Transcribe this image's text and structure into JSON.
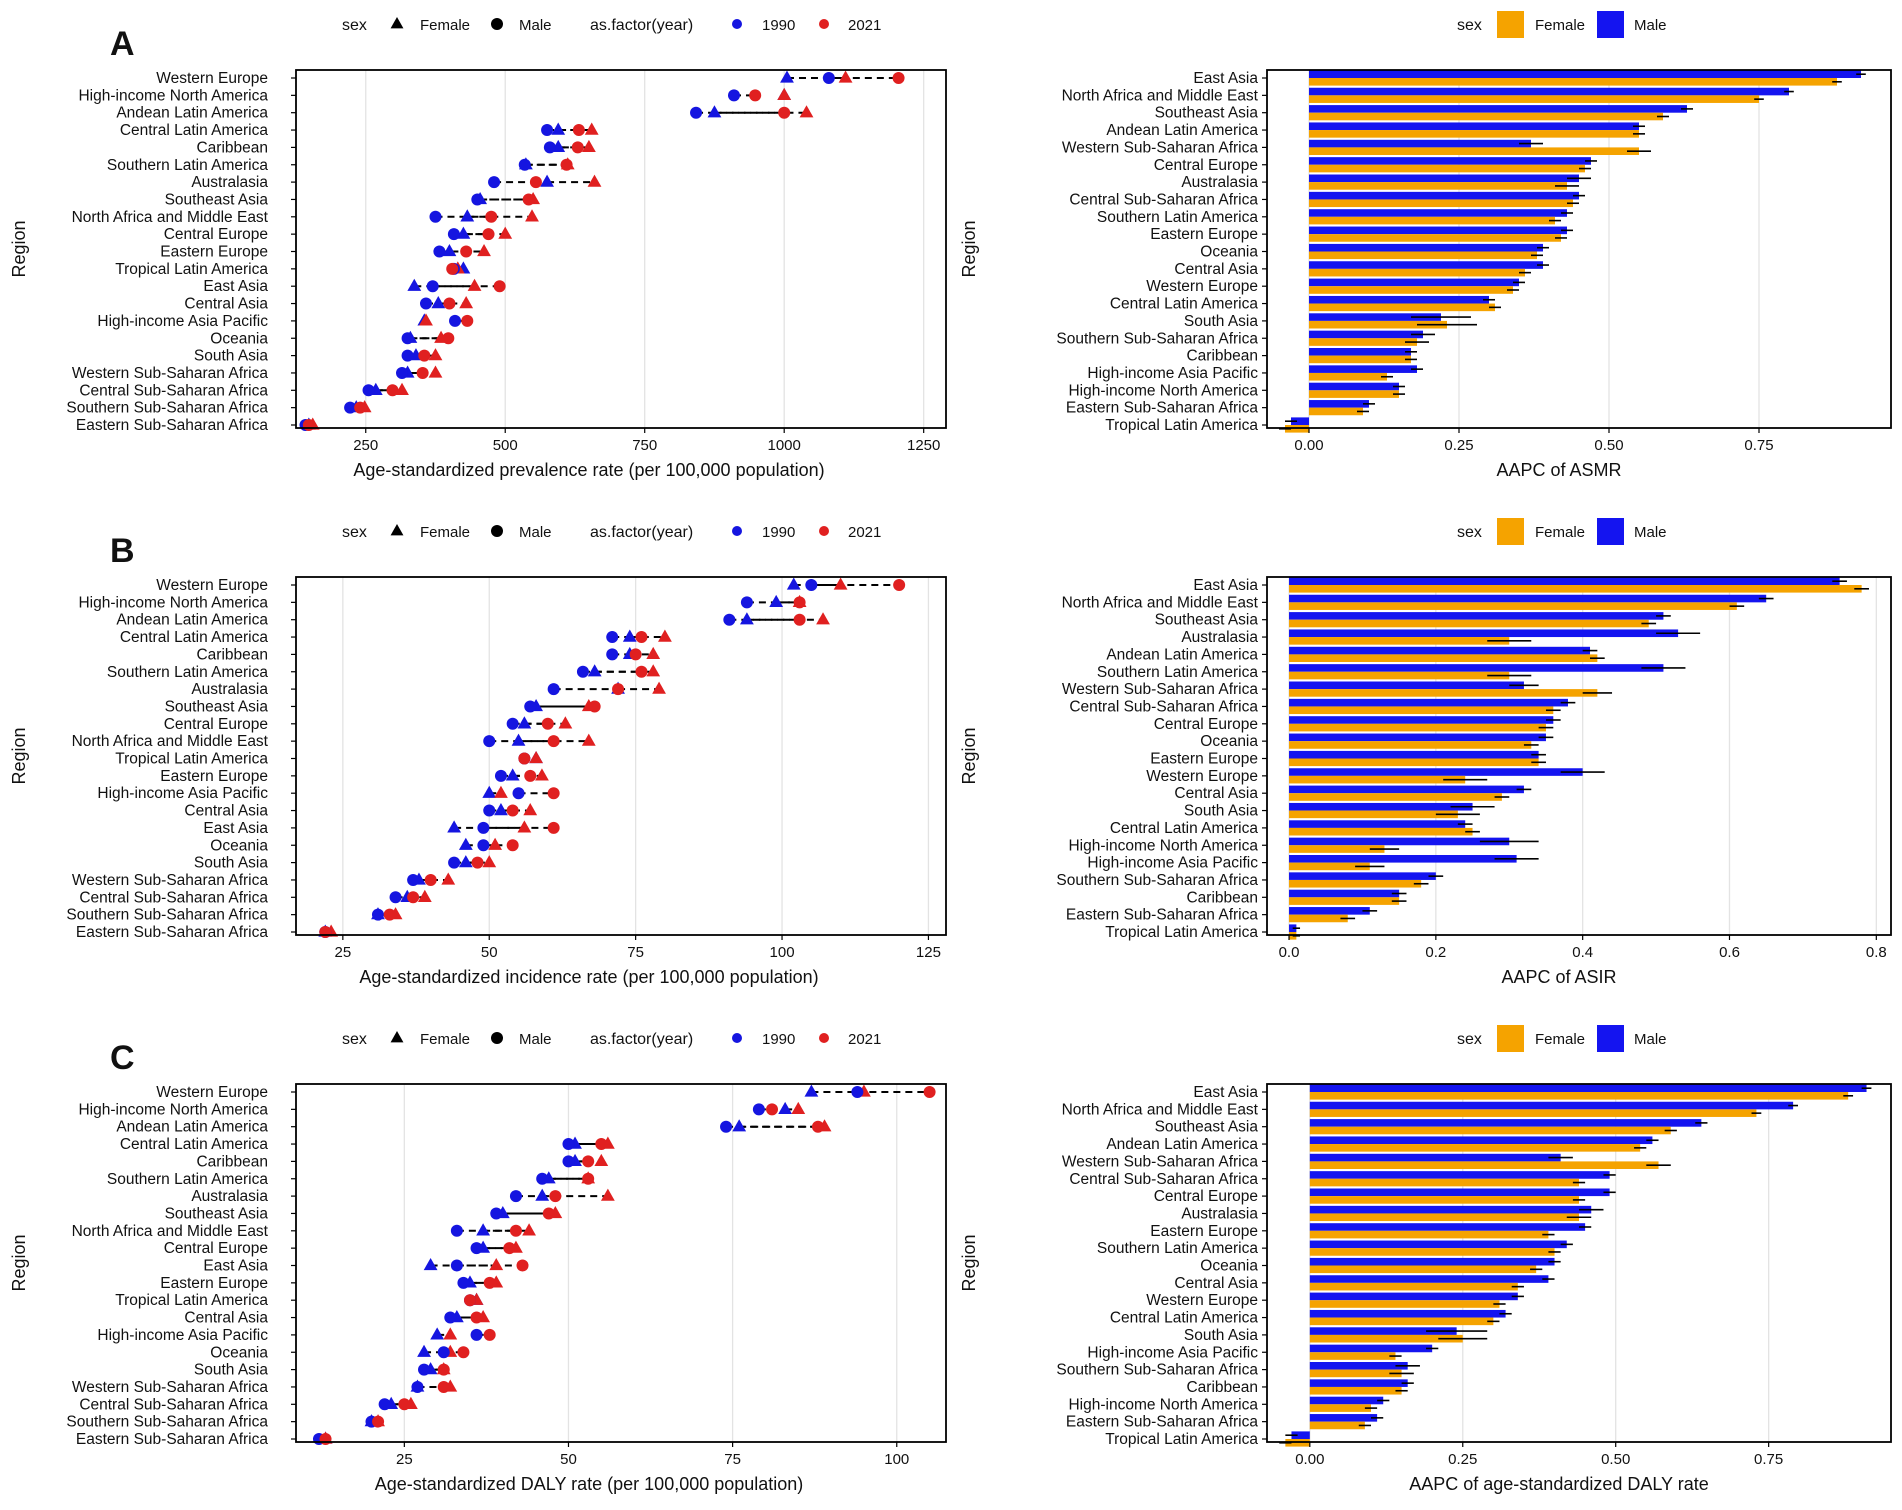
{
  "colors": {
    "y1990": "#1515e0",
    "y2021": "#e02020",
    "female": "#f5a300",
    "male": "#1414f0"
  },
  "chart_data": [
    {
      "id": "A-prevalence",
      "panel_letter": "A",
      "type": "scatter",
      "xlabel": "Age-standardized prevalence rate (per 100,000 population)",
      "ylabel": "Region",
      "xlim": [
        125,
        1290
      ],
      "xticks": [
        250,
        500,
        750,
        1000,
        1250
      ],
      "xtick_labels": [
        "250",
        "500",
        "750",
        "1000",
        "1250"
      ],
      "legend": {
        "sex_title": "sex",
        "female": "Female",
        "male": "Male",
        "year_title": "as.factor(year)",
        "y1": "1990",
        "y2": "2021"
      },
      "regions": [
        "Western Europe",
        "High-income North America",
        "Andean Latin America",
        "Central Latin America",
        "Caribbean",
        "Southern Latin America",
        "Australasia",
        "Southeast Asia",
        "North Africa and Middle East",
        "Central Europe",
        "Eastern Europe",
        "Tropical Latin America",
        "East Asia",
        "Central Asia",
        "High-income Asia Pacific",
        "Oceania",
        "South Asia",
        "Western Sub-Saharan Africa",
        "Central Sub-Saharan Africa",
        "Southern Sub-Saharan Africa",
        "Eastern Sub-Saharan Africa"
      ],
      "female_1990": [
        1005,
        1000,
        875,
        595,
        595,
        537,
        575,
        455,
        432,
        425,
        400,
        425,
        337,
        380,
        355,
        330,
        340,
        325,
        268,
        233,
        148
      ],
      "female_2021": [
        1110,
        1000,
        1040,
        655,
        650,
        612,
        660,
        550,
        548,
        500,
        462,
        415,
        445,
        430,
        358,
        385,
        375,
        375,
        315,
        248,
        155
      ],
      "male_1990": [
        1080,
        910,
        842,
        575,
        580,
        535,
        480,
        450,
        375,
        408,
        382,
        408,
        370,
        358,
        410,
        325,
        325,
        315,
        255,
        222,
        142
      ],
      "male_2021": [
        1205,
        948,
        1000,
        632,
        630,
        610,
        555,
        542,
        475,
        470,
        430,
        405,
        490,
        400,
        432,
        398,
        355,
        352,
        298,
        240,
        148
      ]
    },
    {
      "id": "A-asmr",
      "type": "bar",
      "xlabel": "AAPC of ASMR",
      "ylabel": "Region",
      "xlim": [
        -0.07,
        0.97
      ],
      "xticks": [
        0,
        0.25,
        0.5,
        0.75
      ],
      "xtick_labels": [
        "0.00",
        "0.25",
        "0.50",
        "0.75"
      ],
      "legend": {
        "sex_title": "sex",
        "female": "Female",
        "male": "Male"
      },
      "regions": [
        "East Asia",
        "North Africa and Middle East",
        "Southeast Asia",
        "Andean Latin America",
        "Western Sub-Saharan Africa",
        "Central Europe",
        "Australasia",
        "Central Sub-Saharan Africa",
        "Southern Latin America",
        "Eastern Europe",
        "Oceania",
        "Central Asia",
        "Western Europe",
        "Central Latin America",
        "South Asia",
        "Southern Sub-Saharan Africa",
        "Caribbean",
        "High-income Asia Pacific",
        "High-income North America",
        "Eastern Sub-Saharan Africa",
        "Tropical Latin America"
      ],
      "female": [
        0.88,
        0.75,
        0.59,
        0.55,
        0.55,
        0.46,
        0.43,
        0.44,
        0.41,
        0.42,
        0.38,
        0.36,
        0.34,
        0.31,
        0.23,
        0.18,
        0.17,
        0.13,
        0.15,
        0.09,
        -0.04
      ],
      "male": [
        0.92,
        0.8,
        0.63,
        0.55,
        0.37,
        0.47,
        0.45,
        0.45,
        0.43,
        0.43,
        0.39,
        0.39,
        0.35,
        0.3,
        0.22,
        0.19,
        0.17,
        0.18,
        0.15,
        0.1,
        -0.03
      ],
      "female_err": [
        0.008,
        0.008,
        0.01,
        0.01,
        0.02,
        0.01,
        0.02,
        0.01,
        0.01,
        0.01,
        0.01,
        0.01,
        0.01,
        0.01,
        0.05,
        0.02,
        0.01,
        0.01,
        0.01,
        0.01,
        0.01
      ],
      "male_err": [
        0.008,
        0.008,
        0.01,
        0.01,
        0.02,
        0.01,
        0.02,
        0.01,
        0.01,
        0.01,
        0.01,
        0.01,
        0.01,
        0.01,
        0.05,
        0.02,
        0.01,
        0.01,
        0.01,
        0.01,
        0.01
      ]
    },
    {
      "id": "B-incidence",
      "panel_letter": "B",
      "type": "scatter",
      "xlabel": "Age-standardized incidence rate (per 100,000 population)",
      "ylabel": "Region",
      "xlim": [
        17,
        128
      ],
      "xticks": [
        25,
        50,
        75,
        100,
        125
      ],
      "xtick_labels": [
        "25",
        "50",
        "75",
        "100",
        "125"
      ],
      "legend": {
        "sex_title": "sex",
        "female": "Female",
        "male": "Male",
        "year_title": "as.factor(year)",
        "y1": "1990",
        "y2": "2021"
      },
      "regions": [
        "Western Europe",
        "High-income North America",
        "Andean Latin America",
        "Central Latin America",
        "Caribbean",
        "Southern Latin America",
        "Australasia",
        "Southeast Asia",
        "Central Europe",
        "North Africa and Middle East",
        "Tropical Latin America",
        "Eastern Europe",
        "High-income Asia Pacific",
        "Central Asia",
        "East Asia",
        "Oceania",
        "South Asia",
        "Western Sub-Saharan Africa",
        "Central Sub-Saharan Africa",
        "Southern Sub-Saharan Africa",
        "Eastern Sub-Saharan Africa"
      ],
      "female_1990": [
        102,
        99,
        94,
        74,
        74,
        68,
        72,
        58,
        56,
        55,
        58,
        54,
        50,
        52,
        44,
        46,
        46,
        38,
        36,
        31,
        22
      ],
      "female_2021": [
        110,
        103,
        107,
        80,
        78,
        78,
        79,
        67,
        63,
        67,
        58,
        59,
        52,
        57,
        56,
        51,
        50,
        43,
        39,
        34,
        23
      ],
      "male_1990": [
        105,
        94,
        91,
        71,
        71,
        66,
        61,
        57,
        54,
        50,
        56,
        52,
        55,
        50,
        49,
        49,
        44,
        37,
        34,
        31,
        22
      ],
      "male_2021": [
        120,
        103,
        103,
        76,
        75,
        76,
        72,
        68,
        60,
        61,
        56,
        57,
        61,
        54,
        61,
        54,
        48,
        40,
        37,
        33,
        22
      ]
    },
    {
      "id": "B-asir",
      "type": "bar",
      "xlabel": "AAPC of ASIR",
      "ylabel": "Region",
      "xlim": [
        -0.03,
        0.82
      ],
      "xticks": [
        0,
        0.2,
        0.4,
        0.6,
        0.8
      ],
      "xtick_labels": [
        "0.0",
        "0.2",
        "0.4",
        "0.6",
        "0.8"
      ],
      "legend": {
        "sex_title": "sex",
        "female": "Female",
        "male": "Male"
      },
      "regions": [
        "East Asia",
        "North Africa and Middle East",
        "Southeast Asia",
        "Australasia",
        "Andean Latin America",
        "Southern Latin America",
        "Western Sub-Saharan Africa",
        "Central Sub-Saharan Africa",
        "Central Europe",
        "Oceania",
        "Eastern Europe",
        "Western Europe",
        "Central Asia",
        "South Asia",
        "Central Latin America",
        "High-income North America",
        "High-income Asia Pacific",
        "Southern Sub-Saharan Africa",
        "Caribbean",
        "Eastern Sub-Saharan Africa",
        "Tropical Latin America"
      ],
      "female": [
        0.78,
        0.61,
        0.49,
        0.3,
        0.42,
        0.3,
        0.42,
        0.36,
        0.35,
        0.33,
        0.34,
        0.24,
        0.29,
        0.23,
        0.25,
        0.13,
        0.11,
        0.18,
        0.15,
        0.08,
        0.01
      ],
      "male": [
        0.75,
        0.65,
        0.51,
        0.53,
        0.41,
        0.51,
        0.32,
        0.38,
        0.36,
        0.35,
        0.34,
        0.4,
        0.32,
        0.25,
        0.24,
        0.3,
        0.31,
        0.2,
        0.15,
        0.11,
        0.01
      ],
      "female_err": [
        0.01,
        0.01,
        0.01,
        0.03,
        0.01,
        0.03,
        0.02,
        0.01,
        0.01,
        0.01,
        0.01,
        0.03,
        0.01,
        0.03,
        0.01,
        0.02,
        0.02,
        0.01,
        0.01,
        0.01,
        0.005
      ],
      "male_err": [
        0.01,
        0.01,
        0.01,
        0.03,
        0.01,
        0.03,
        0.02,
        0.01,
        0.01,
        0.01,
        0.01,
        0.03,
        0.01,
        0.03,
        0.01,
        0.04,
        0.03,
        0.01,
        0.01,
        0.01,
        0.005
      ]
    },
    {
      "id": "C-daly",
      "panel_letter": "C",
      "type": "scatter",
      "xlabel": "Age-standardized DALY rate (per 100,000 population)",
      "ylabel": "Region",
      "xlim": [
        8.5,
        107.5
      ],
      "xticks": [
        25,
        50,
        75,
        100
      ],
      "xtick_labels": [
        "25",
        "50",
        "75",
        "100"
      ],
      "legend": {
        "sex_title": "sex",
        "female": "Female",
        "male": "Male",
        "year_title": "as.factor(year)",
        "y1": "1990",
        "y2": "2021"
      },
      "regions": [
        "Western Europe",
        "High-income North America",
        "Andean Latin America",
        "Central Latin America",
        "Caribbean",
        "Southern Latin America",
        "Australasia",
        "Southeast Asia",
        "North Africa and Middle East",
        "Central Europe",
        "East Asia",
        "Eastern Europe",
        "Tropical Latin America",
        "Central Asia",
        "High-income Asia Pacific",
        "Oceania",
        "South Asia",
        "Western Sub-Saharan Africa",
        "Central Sub-Saharan Africa",
        "Southern Sub-Saharan Africa",
        "Eastern Sub-Saharan Africa"
      ],
      "female_1990": [
        87,
        83,
        76,
        51,
        51,
        47,
        46,
        40,
        37,
        37,
        29,
        35,
        36,
        33,
        30,
        28,
        29,
        27,
        23,
        20,
        13
      ],
      "female_2021": [
        95,
        85,
        89,
        56,
        55,
        53,
        56,
        48,
        44,
        42,
        39,
        39,
        36,
        37,
        32,
        32,
        31,
        32,
        26,
        21,
        13
      ],
      "male_1990": [
        94,
        79,
        74,
        50,
        50,
        46,
        42,
        39,
        33,
        36,
        33,
        34,
        35,
        32,
        36,
        31,
        28,
        27,
        22,
        20,
        12
      ],
      "male_2021": [
        105,
        81,
        88,
        55,
        53,
        53,
        48,
        47,
        42,
        41,
        43,
        38,
        35,
        36,
        38,
        34,
        31,
        31,
        25,
        21,
        13
      ]
    },
    {
      "id": "C-daly-aapc",
      "type": "bar",
      "xlabel": "AAPC of age-standardized DALY rate",
      "ylabel": "Region",
      "xlim": [
        -0.07,
        0.95
      ],
      "xticks": [
        0,
        0.25,
        0.5,
        0.75
      ],
      "xtick_labels": [
        "0.00",
        "0.25",
        "0.50",
        "0.75"
      ],
      "legend": {
        "sex_title": "sex",
        "female": "Female",
        "male": "Male"
      },
      "regions": [
        "East Asia",
        "North Africa and Middle East",
        "Southeast Asia",
        "Andean Latin America",
        "Western Sub-Saharan Africa",
        "Central Sub-Saharan Africa",
        "Central Europe",
        "Australasia",
        "Eastern Europe",
        "Southern Latin America",
        "Oceania",
        "Central Asia",
        "Western Europe",
        "Central Latin America",
        "South Asia",
        "High-income Asia Pacific",
        "Southern Sub-Saharan Africa",
        "Caribbean",
        "High-income North America",
        "Eastern Sub-Saharan Africa",
        "Tropical Latin America"
      ],
      "female": [
        0.88,
        0.73,
        0.59,
        0.54,
        0.57,
        0.44,
        0.44,
        0.44,
        0.39,
        0.4,
        0.37,
        0.34,
        0.31,
        0.3,
        0.25,
        0.14,
        0.15,
        0.15,
        0.1,
        0.09,
        -0.04
      ],
      "male": [
        0.91,
        0.79,
        0.64,
        0.56,
        0.41,
        0.49,
        0.49,
        0.46,
        0.45,
        0.42,
        0.4,
        0.39,
        0.34,
        0.32,
        0.24,
        0.2,
        0.16,
        0.16,
        0.12,
        0.11,
        -0.03
      ],
      "female_err": [
        0.008,
        0.008,
        0.01,
        0.01,
        0.02,
        0.01,
        0.01,
        0.02,
        0.01,
        0.01,
        0.01,
        0.01,
        0.01,
        0.01,
        0.04,
        0.01,
        0.02,
        0.01,
        0.01,
        0.01,
        0.01
      ],
      "male_err": [
        0.008,
        0.008,
        0.01,
        0.01,
        0.02,
        0.01,
        0.01,
        0.02,
        0.01,
        0.01,
        0.01,
        0.01,
        0.01,
        0.01,
        0.05,
        0.01,
        0.02,
        0.01,
        0.01,
        0.01,
        0.01
      ]
    }
  ]
}
